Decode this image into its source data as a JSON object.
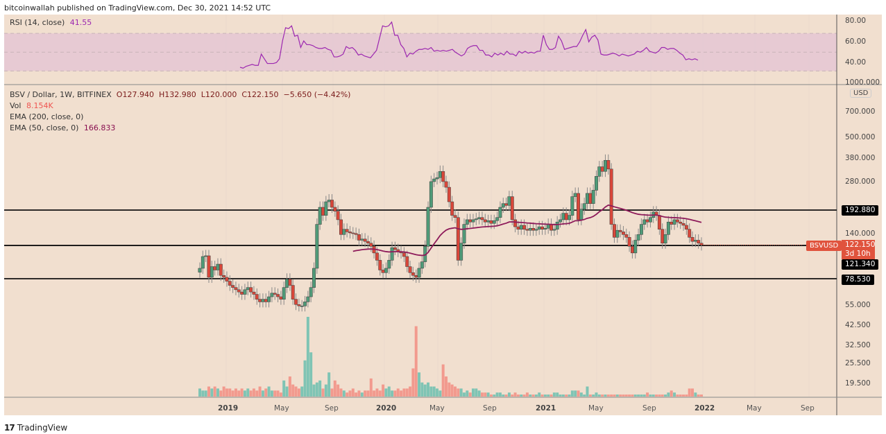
{
  "publisher_line": "bitcoinwallah published on TradingView.com, Dec 30, 2021 14:52 UTC",
  "brand": {
    "logo": "17",
    "name": "TradingView"
  },
  "rsi_pane": {
    "label": "RSI (14, close)",
    "value": "41.55",
    "axis_ticks": [
      "80.00",
      "60.00",
      "40.00"
    ],
    "band": [
      30,
      70
    ]
  },
  "main_pane": {
    "symbol_line": "BSV / Dollar, 1W, BITFINEX",
    "open": "O127.940",
    "high": "H132.980",
    "low": "L120.000",
    "close": "C122.150",
    "change": "−5.650 (−4.42%)",
    "vol_label": "Vol",
    "vol_value": "8.154K",
    "ema200_label": "EMA (200, close, 0)",
    "ema50_label": "EMA (50, close, 0)",
    "ema50_value": "166.833",
    "currency_badge": "USD",
    "price_axis_ticks": [
      "1000.000",
      "700.000",
      "500.000",
      "380.000",
      "280.000",
      "140.000",
      "55.000",
      "42.500",
      "32.500",
      "25.500",
      "19.500"
    ],
    "horizontal_levels": [
      "192.880",
      "121.340",
      "78.530"
    ],
    "symbol_tag": "BSVUSD",
    "current_price": "122.150",
    "countdown": "3d 10h"
  },
  "time_axis": [
    "2019",
    "May",
    "Sep",
    "2020",
    "May",
    "Sep",
    "2021",
    "May",
    "Sep",
    "2022",
    "May",
    "Sep"
  ],
  "colors": {
    "background": "#f1dfcf",
    "up": "#4f9a78",
    "down": "#d9473a",
    "vol_up": "#7fc4b4",
    "vol_down": "#f29a8e",
    "rsi_line": "#9c27b0",
    "rsi_band": "#e5c7d3",
    "ema50": "#8e1a5a",
    "level_line": "#111111"
  },
  "chart_data": [
    {
      "type": "line",
      "title": "RSI (14, close)",
      "ylim": [
        20,
        90
      ],
      "y_ticks": [
        80,
        60,
        40
      ],
      "band": [
        30,
        70
      ],
      "values": [
        34,
        33,
        35,
        36,
        37,
        36,
        36,
        48,
        43,
        38,
        38,
        38,
        39,
        43,
        62,
        76,
        75,
        78,
        67,
        68,
        55,
        62,
        58,
        58,
        57,
        55,
        54,
        54,
        55,
        53,
        52,
        45,
        45,
        46,
        48,
        56,
        54,
        55,
        52,
        47,
        48,
        46,
        45,
        44,
        48,
        52,
        65,
        78,
        77,
        78,
        82,
        68,
        68,
        58,
        54,
        45,
        49,
        48,
        51,
        53,
        53,
        54,
        53,
        55,
        51,
        52,
        51,
        52,
        51,
        52,
        53,
        50,
        48,
        46,
        48,
        54,
        56,
        57,
        57,
        52,
        52,
        47,
        47,
        45,
        49,
        47,
        49,
        47,
        51,
        48,
        48,
        46,
        51,
        49,
        51,
        49,
        50,
        49,
        51,
        51,
        68,
        58,
        53,
        53,
        55,
        67,
        62,
        53,
        54,
        55,
        56,
        56,
        61,
        68,
        74,
        61,
        66,
        68,
        63,
        48,
        47,
        47,
        48,
        49,
        48,
        46,
        48,
        47,
        46,
        47,
        48,
        51,
        50,
        52,
        55,
        51,
        50,
        49,
        51,
        55,
        55,
        53,
        54,
        54,
        52,
        49,
        47,
        42,
        43,
        42,
        43,
        41.55
      ],
      "current": 41.55
    },
    {
      "type": "candlestick",
      "title": "BSV / Dollar, 1W, BITFINEX",
      "ylabel": "USD",
      "scale": "log",
      "ylim": [
        17,
        1100
      ],
      "y_ticks": [
        1000,
        700,
        500,
        380,
        280,
        192.88,
        140,
        122.15,
        121.34,
        78.53,
        55,
        42.5,
        32.5,
        25.5,
        19.5
      ],
      "x_ticks": [
        "2019",
        "May",
        "Sep",
        "2020",
        "May",
        "Sep",
        "2021",
        "May",
        "Sep",
        "2022",
        "May",
        "Sep"
      ],
      "last": {
        "open": 127.94,
        "high": 132.98,
        "low": 120.0,
        "close": 122.15,
        "change": -5.65,
        "change_pct": -4.42
      },
      "closes": [
        90,
        105,
        106,
        80,
        92,
        88,
        95,
        82,
        80,
        76,
        72,
        70,
        68,
        66,
        64,
        68,
        70,
        66,
        64,
        60,
        58,
        60,
        58,
        62,
        65,
        64,
        62,
        60,
        70,
        78,
        72,
        60,
        56,
        55,
        55,
        58,
        62,
        70,
        90,
        160,
        200,
        180,
        215,
        220,
        200,
        190,
        170,
        140,
        150,
        145,
        143,
        142,
        140,
        130,
        132,
        128,
        125,
        120,
        110,
        100,
        88,
        85,
        90,
        100,
        118,
        115,
        112,
        110,
        105,
        92,
        85,
        82,
        80,
        90,
        98,
        120,
        200,
        280,
        290,
        295,
        320,
        280,
        260,
        215,
        180,
        175,
        100,
        125,
        160,
        170,
        165,
        170,
        172,
        175,
        170,
        165,
        168,
        162,
        168,
        175,
        200,
        210,
        205,
        230,
        170,
        155,
        150,
        158,
        150,
        148,
        152,
        148,
        150,
        155,
        150,
        152,
        160,
        148,
        150,
        165,
        170,
        185,
        170,
        180,
        230,
        240,
        170,
        195,
        210,
        240,
        210,
        250,
        300,
        340,
        320,
        370,
        330,
        160,
        135,
        148,
        145,
        140,
        135,
        120,
        110,
        130,
        140,
        160,
        170,
        165,
        175,
        188,
        180,
        150,
        125,
        140,
        165,
        160,
        170,
        165,
        162,
        158,
        150,
        135,
        128,
        130,
        125,
        122.15
      ],
      "horizontal_levels": [
        192.88,
        121.34,
        78.53
      ],
      "ema50_last": 166.833,
      "volume_last": "8.154K"
    },
    {
      "type": "bar",
      "title": "Volume",
      "values": [
        4,
        3,
        3,
        5,
        4,
        5,
        4,
        3,
        5,
        4,
        4,
        3,
        4,
        3,
        4,
        3,
        4,
        3,
        4,
        3,
        5,
        3,
        4,
        5,
        3,
        3,
        3,
        2,
        8,
        5,
        10,
        6,
        5,
        4,
        5,
        18,
        40,
        22,
        6,
        7,
        8,
        4,
        6,
        12,
        4,
        8,
        6,
        4,
        3,
        2,
        3,
        4,
        2,
        3,
        2,
        3,
        3,
        9,
        3,
        4,
        3,
        6,
        4,
        5,
        3,
        3,
        4,
        3,
        4,
        4,
        5,
        14,
        35,
        12,
        7,
        6,
        7,
        5,
        5,
        4,
        3,
        16,
        10,
        7,
        6,
        5,
        4,
        4,
        2,
        3,
        2,
        4,
        4,
        3,
        2,
        2,
        2,
        1,
        1,
        2,
        2,
        1,
        1,
        2,
        1,
        2,
        1,
        1,
        1,
        2,
        1,
        1,
        1,
        2,
        1,
        1,
        1,
        1,
        2,
        2,
        1,
        1,
        1,
        1,
        3,
        3,
        3,
        2,
        1,
        5,
        1,
        1,
        2,
        1,
        1,
        1,
        1,
        1,
        1,
        1,
        1,
        1,
        1,
        1,
        1,
        1,
        1,
        1,
        1,
        2,
        1,
        1,
        1,
        1,
        1,
        1,
        2,
        3,
        2,
        1,
        1,
        1,
        1,
        4,
        4,
        2,
        1,
        1,
        1,
        1,
        1,
        1,
        1,
        2,
        1,
        1,
        1,
        0.5
      ],
      "note": "relative heights; vol up/down colored to match candle"
    }
  ]
}
